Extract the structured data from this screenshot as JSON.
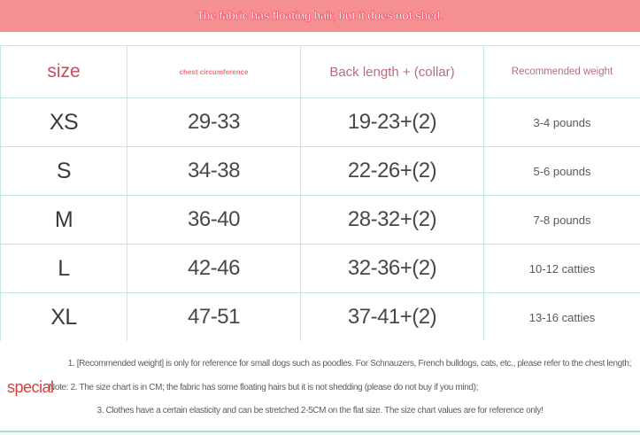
{
  "banner": {
    "text": "The fabric has floating hair, but it does not shed."
  },
  "table": {
    "headers": [
      {
        "id": "size",
        "label": "size"
      },
      {
        "id": "chest",
        "label": "chest circumference"
      },
      {
        "id": "back",
        "label": "Back length + (collar)"
      },
      {
        "id": "weight",
        "label": "Recommended weight"
      }
    ],
    "rows": [
      {
        "size": "XS",
        "chest": "29-33",
        "back": "19-23+(2)",
        "weight": "3-4 pounds"
      },
      {
        "size": "S",
        "chest": "34-38",
        "back": "22-26+(2)",
        "weight": "5-6 pounds"
      },
      {
        "size": "M",
        "chest": "36-40",
        "back": "28-32+(2)",
        "weight": "7-8 pounds"
      },
      {
        "size": "L",
        "chest": "42-46",
        "back": "32-36+(2)",
        "weight": "10-12 catties"
      },
      {
        "size": "XL",
        "chest": "47-51",
        "back": "37-41+(2)",
        "weight": "13-16 catties"
      }
    ]
  },
  "notes": {
    "special_label": "special",
    "lines": [
      "1. [Recommended weight] is only for reference for small dogs such as poodles. For Schnauzers, French bulldogs, cats, etc., please refer to the chest length;",
      "Note: 2. The size chart is in CM; the fabric has some floating hairs but it is not shedding (please do not buy if you mind);",
      "3. Clothes have a certain elasticity and can be stretched 2-5CM on the flat size. The size chart values are for reference only!"
    ]
  },
  "colors": {
    "banner_bg": "#f49091",
    "banner_text": "#ffffff",
    "banner_text_outline": "#ee5a70",
    "table_border": "#c6e9dc",
    "header_size": "#c24e60",
    "header_chest": "#f5707e",
    "header_rose": "#b86f7a",
    "cell_text": "#484848",
    "weight_text": "#595959",
    "note_text": "#5d5d5d",
    "special_red": "#e23a3a",
    "bottom_bar": "#a9dfd1"
  }
}
